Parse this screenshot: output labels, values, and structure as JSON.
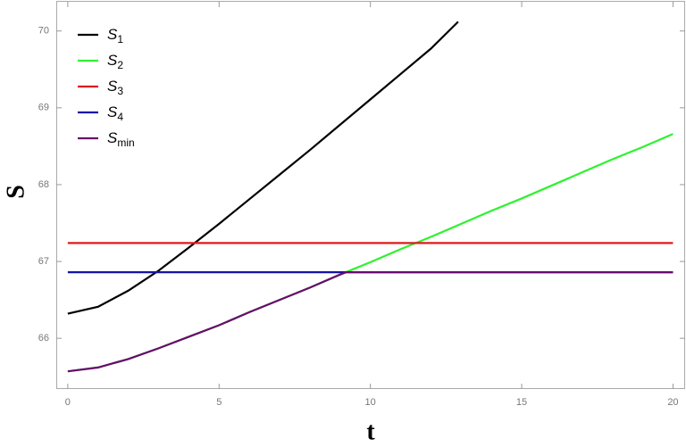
{
  "chart_data": {
    "type": "line",
    "x_label": "t",
    "y_label": "S",
    "xlim": [
      -0.38,
      20.4
    ],
    "ylim": [
      65.34,
      70.38
    ],
    "xticks": [
      0,
      5,
      10,
      15,
      20
    ],
    "yticks": [
      66,
      67,
      68,
      69,
      70
    ],
    "legend": "upper left",
    "series": [
      {
        "name": "S1",
        "color": "#000000",
        "x": [
          0,
          1,
          2,
          3,
          4,
          5,
          6,
          7,
          8,
          9,
          10,
          11,
          12,
          12.9
        ],
        "values": [
          66.32,
          66.41,
          66.62,
          66.88,
          67.18,
          67.49,
          67.81,
          68.13,
          68.45,
          68.78,
          69.11,
          69.44,
          69.77,
          70.12
        ]
      },
      {
        "name": "S2",
        "color": "#2ef22e",
        "x": [
          0,
          1,
          2,
          3,
          4,
          5,
          6,
          7,
          8,
          9,
          10,
          11,
          12,
          13,
          14,
          15,
          16,
          17,
          18,
          19,
          20
        ],
        "values": [
          65.57,
          65.62,
          65.73,
          65.87,
          66.02,
          66.17,
          66.34,
          66.5,
          66.66,
          66.83,
          66.99,
          67.16,
          67.32,
          67.49,
          67.66,
          67.82,
          67.99,
          68.16,
          68.33,
          68.49,
          68.66
        ]
      },
      {
        "name": "S3",
        "color": "#dd1c1c",
        "x": [
          0,
          20
        ],
        "values": [
          67.24,
          67.24
        ]
      },
      {
        "name": "S4",
        "color": "#1414a8",
        "x": [
          0,
          20
        ],
        "values": [
          66.86,
          66.86
        ]
      },
      {
        "name": "Smin",
        "color": "#6a0a6e",
        "x": [
          0,
          1,
          2,
          3,
          4,
          5,
          6,
          7,
          8,
          9,
          9.2,
          20
        ],
        "values": [
          65.57,
          65.62,
          65.73,
          65.87,
          66.02,
          66.17,
          66.34,
          66.5,
          66.66,
          66.83,
          66.86,
          66.86
        ]
      }
    ]
  }
}
